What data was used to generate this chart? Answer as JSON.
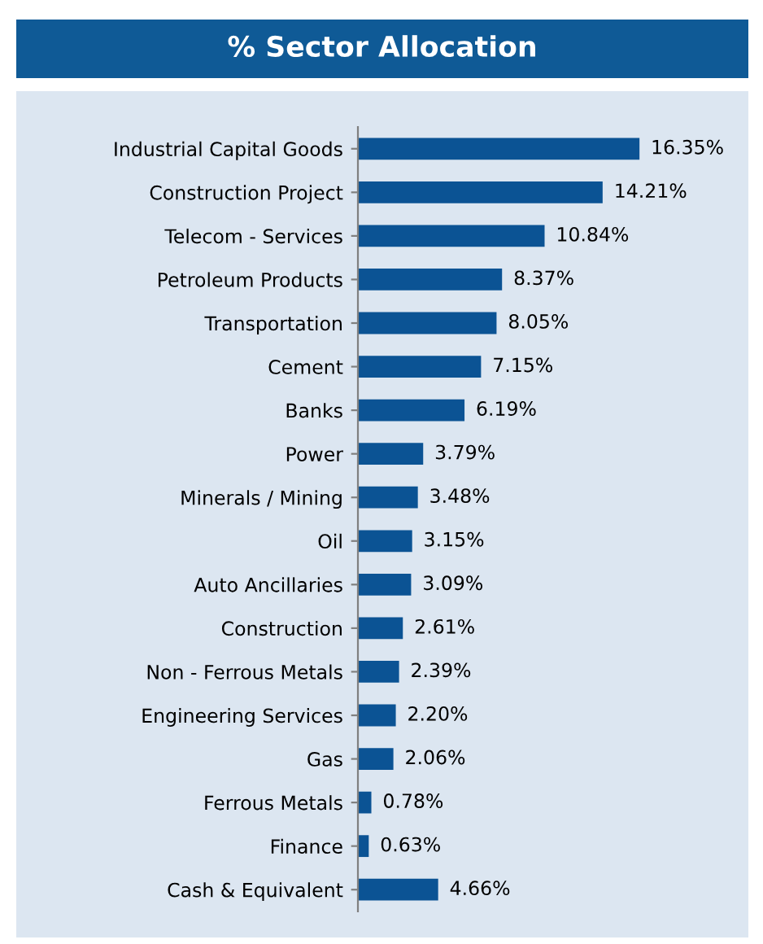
{
  "chart_data": {
    "type": "bar",
    "orientation": "horizontal",
    "title": "% Sector Allocation",
    "categories": [
      "Industrial Capital Goods",
      "Construction Project",
      "Telecom - Services",
      "Petroleum Products",
      "Transportation",
      "Cement",
      "Banks",
      "Power",
      "Minerals / Mining",
      "Oil",
      "Auto Ancillaries",
      "Construction",
      "Non - Ferrous Metals",
      "Engineering Services",
      "Gas",
      "Ferrous Metals",
      "Finance",
      "Cash & Equivalent"
    ],
    "values": [
      16.35,
      14.21,
      10.84,
      8.37,
      8.05,
      7.15,
      6.19,
      3.79,
      3.48,
      3.15,
      3.09,
      2.61,
      2.39,
      2.2,
      2.06,
      0.78,
      0.63,
      4.66
    ],
    "value_labels": [
      "16.35%",
      "14.21%",
      "10.84%",
      "8.37%",
      "8.05%",
      "7.15%",
      "6.19%",
      "3.79%",
      "3.48%",
      "3.15%",
      "3.09%",
      "2.61%",
      "2.39%",
      "2.20%",
      "2.06%",
      "0.78%",
      "0.63%",
      "4.66%"
    ],
    "color": "#0b5394",
    "grid": false,
    "legend": false
  }
}
